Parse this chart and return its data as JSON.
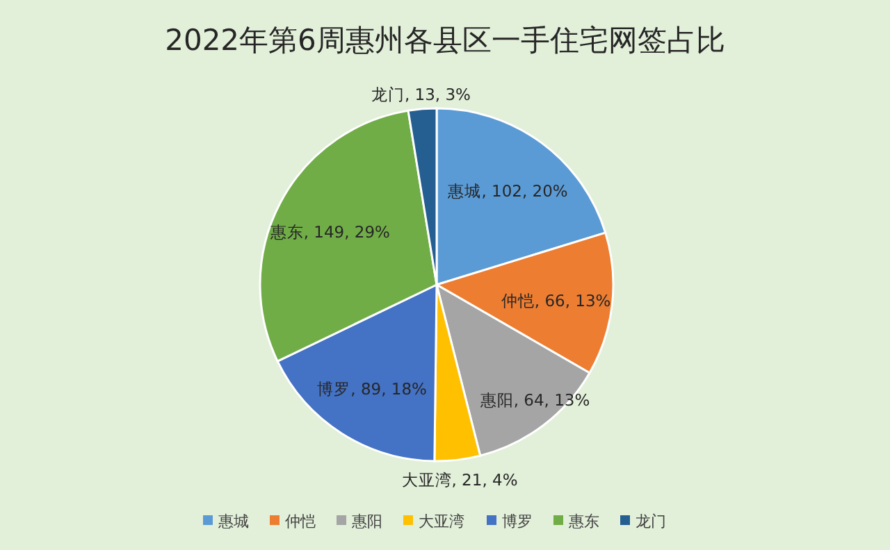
{
  "chart_data": {
    "type": "pie",
    "title": "2022年第6周惠州各县区一手住宅网签占比",
    "categories": [
      "惠城",
      "仲恺",
      "惠阳",
      "大亚湾",
      "博罗",
      "惠东",
      "龙门"
    ],
    "values": [
      102,
      66,
      64,
      21,
      89,
      149,
      13
    ],
    "colors": [
      "#5b9bd5",
      "#ed7d31",
      "#a5a5a5",
      "#ffc000",
      "#4472c4",
      "#70ad47",
      "#255e91"
    ],
    "value_labels": [
      "惠城, 102, 20%",
      "仲恺, 66, 13%",
      "惠阳, 64, 13%",
      "大亚湾, 21, 4%",
      "博罗, 89, 18%",
      "惠东, 149, 29%",
      "龙门, 13, 3%"
    ],
    "legend": "bottom"
  }
}
